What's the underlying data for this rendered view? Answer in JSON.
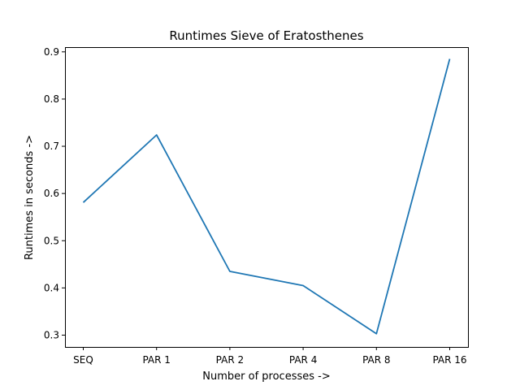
{
  "chart_data": {
    "type": "line",
    "title": "Runtimes Sieve of Eratosthenes",
    "xlabel": "Number of processes ->",
    "ylabel": "Runtimes in seconds ->",
    "categories": [
      "SEQ",
      "PAR 1",
      "PAR 2",
      "PAR 4",
      "PAR 8",
      "PAR 16"
    ],
    "series": [
      {
        "values": [
          0.581,
          0.724,
          0.435,
          0.405,
          0.303,
          0.885
        ],
        "color": "#1f77b4"
      }
    ],
    "ylim": [
      0.275,
      0.91
    ],
    "yticks": [
      0.3,
      0.4,
      0.5,
      0.6,
      0.7,
      0.8,
      0.9
    ],
    "ytick_labels": [
      "0.3",
      "0.4",
      "0.5",
      "0.6",
      "0.7",
      "0.8",
      "0.9"
    ],
    "grid": false,
    "legend": "none"
  }
}
